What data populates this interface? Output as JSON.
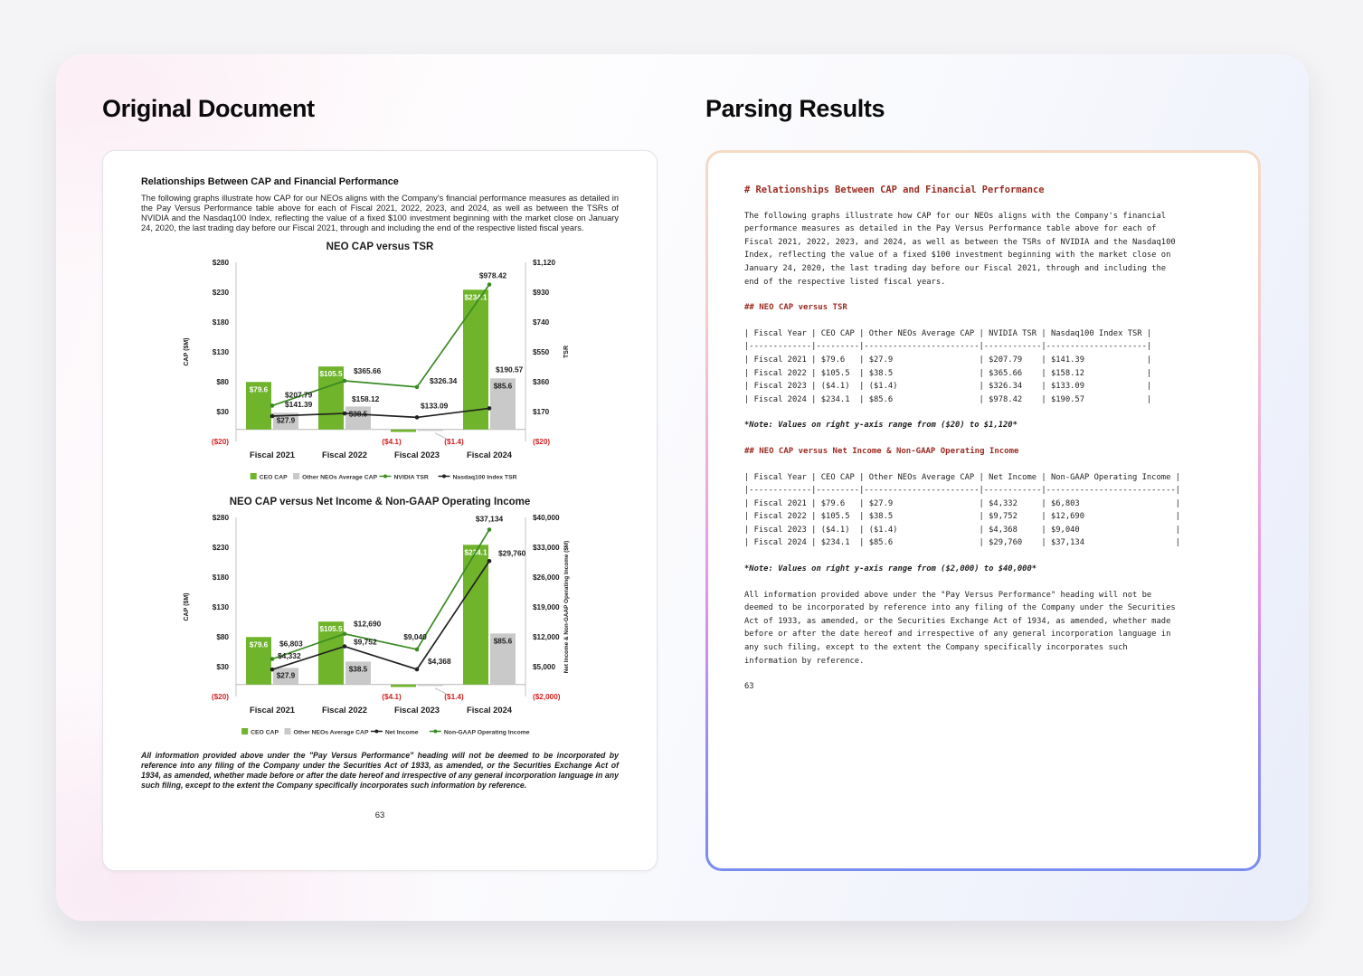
{
  "page": {
    "background": "#f4f4f6"
  },
  "colors": {
    "bar_green": "#6fb42b",
    "line_green": "#3a8a23",
    "bar_gray": "#c9c9c9",
    "line_black": "#222222",
    "negative_red": "#d42222",
    "md_heading_red": "#9a2c21",
    "parse_border_top": "#f3dbc7",
    "parse_border_mid": "#e392ea",
    "parse_border_bottom": "#7a8cee"
  },
  "left_panel": {
    "title": "Original Document"
  },
  "right_panel": {
    "title": "Parsing Results",
    "blocks": [
      {
        "type": "h1",
        "text": "# Relationships Between CAP and Financial Performance"
      },
      {
        "type": "p",
        "text": "The following graphs illustrate how CAP for our NEOs aligns with the Company's financial\nperformance measures as detailed in the Pay Versus Performance table above for each of\nFiscal 2021, 2022, 2023, and 2024, as well as between the TSRs of NVIDIA and the Nasdaq100\nIndex, reflecting the value of a fixed $100 investment beginning with the market close on\nJanuary 24, 2020, the last trading day before our Fiscal 2021, through and including the\nend of the respective listed fiscal years."
      },
      {
        "type": "h2",
        "text": "## NEO CAP versus TSR"
      },
      {
        "type": "table",
        "text": "| Fiscal Year | CEO CAP | Other NEOs Average CAP | NVIDIA TSR | Nasdaq100 Index TSR |\n|-------------|---------|------------------------|------------|---------------------|\n| Fiscal 2021 | $79.6   | $27.9                  | $207.79    | $141.39             |\n| Fiscal 2022 | $105.5  | $38.5                  | $365.66    | $158.12             |\n| Fiscal 2023 | ($4.1)  | ($1.4)                 | $326.34    | $133.09             |\n| Fiscal 2024 | $234.1  | $85.6                  | $978.42    | $190.57             |"
      },
      {
        "type": "note",
        "text": "*Note: Values on right y-axis range from ($20) to $1,120*"
      },
      {
        "type": "h2",
        "text": "## NEO CAP versus Net Income & Non-GAAP Operating Income"
      },
      {
        "type": "table",
        "text": "| Fiscal Year | CEO CAP | Other NEOs Average CAP | Net Income | Non-GAAP Operating Income |\n|-------------|---------|------------------------|------------|---------------------------|\n| Fiscal 2021 | $79.6   | $27.9                  | $4,332     | $6,803                    |\n| Fiscal 2022 | $105.5  | $38.5                  | $9,752     | $12,690                   |\n| Fiscal 2023 | ($4.1)  | ($1.4)                 | $4,368     | $9,040                    |\n| Fiscal 2024 | $234.1  | $85.6                  | $29,760    | $37,134                   |"
      },
      {
        "type": "note",
        "text": "*Note: Values on right y-axis range from ($2,000) to $40,000*"
      },
      {
        "type": "p",
        "text": "All information provided above under the \"Pay Versus Performance\" heading will not be\ndeemed to be incorporated by reference into any filing of the Company under the Securities\nAct of 1933, as amended, or the Securities Exchange Act of 1934, as amended, whether made\nbefore or after the date hereof and irrespective of any general incorporation language in\nany such filing, except to the extent the Company specifically incorporates such\ninformation by reference."
      },
      {
        "type": "p",
        "text": "63"
      }
    ]
  },
  "document": {
    "heading": "Relationships Between CAP and Financial Performance",
    "intro": "The following graphs illustrate how CAP for our NEOs aligns with the Company's financial performance measures as detailed in the Pay Versus Performance table above for each of Fiscal 2021, 2022, 2023, and 2024, as well as between the TSRs of NVIDIA and the Nasdaq100 Index, reflecting the value of a fixed $100 investment beginning with the market close on January 24, 2020, the last trading day before our Fiscal 2021, through and including the end of the respective listed fiscal years.",
    "disclaimer": "All information provided above under the \"Pay Versus Performance\" heading will not be deemed to be incorporated by reference into any filing of the Company under the Securities Act of 1933, as amended, or the Securities Exchange Act of 1934, as amended, whether made before or after the date hereof and irrespective of any general incorporation language in any such filing, except to the extent the Company specifically incorporates such information by reference.",
    "page_number": "63"
  },
  "chart_data": [
    {
      "type": "bar+line",
      "title": "NEO CAP versus TSR",
      "categories": [
        "Fiscal 2021",
        "Fiscal 2022",
        "Fiscal 2023",
        "Fiscal 2024"
      ],
      "left_axis": {
        "label": "CAP ($M)",
        "range": [
          -20,
          280
        ],
        "tick_values": [
          280,
          230,
          180,
          130,
          80,
          30,
          -20
        ],
        "ticks": [
          "$280",
          "$230",
          "$180",
          "$130",
          "$80",
          "$30",
          "($20)"
        ]
      },
      "right_axis": {
        "label": "TSR",
        "range": [
          -20,
          1120
        ],
        "tick_values": [
          1120,
          930,
          740,
          550,
          360,
          170,
          -20
        ],
        "ticks": [
          "$1,120",
          "$930",
          "$740",
          "$550",
          "$360",
          "$170",
          "($20)"
        ]
      },
      "bar_series": [
        {
          "name": "CEO CAP",
          "color": "#6fb42b",
          "values": [
            79.6,
            105.5,
            -4.1,
            234.1
          ],
          "labels": [
            "$79.6",
            "$105.5",
            "($4.1)",
            "$234.1"
          ]
        },
        {
          "name": "Other NEOs Average CAP",
          "color": "#c9c9c9",
          "values": [
            27.9,
            38.5,
            -1.4,
            85.6
          ],
          "labels": [
            "$27.9",
            "$38.5",
            "($1.4)",
            "$85.6"
          ]
        }
      ],
      "line_series": [
        {
          "name": "NVIDIA TSR",
          "color": "#3a8a23",
          "values": [
            207.79,
            365.66,
            326.34,
            978.42
          ],
          "labels": [
            "$207.79",
            "$365.66",
            "$326.34",
            "$978.42"
          ]
        },
        {
          "name": "Nasdaq100 Index TSR",
          "color": "#222222",
          "values": [
            141.39,
            158.12,
            133.09,
            190.57
          ],
          "labels": [
            "$141.39",
            "$158.12",
            "$133.09",
            "$190.57"
          ]
        }
      ],
      "legend_position": "bottom",
      "grid": false
    },
    {
      "type": "bar+line",
      "title": "NEO CAP versus Net Income & Non-GAAP Operating Income",
      "categories": [
        "Fiscal 2021",
        "Fiscal 2022",
        "Fiscal 2023",
        "Fiscal 2024"
      ],
      "left_axis": {
        "label": "CAP ($M)",
        "range": [
          -20,
          280
        ],
        "tick_values": [
          280,
          230,
          180,
          130,
          80,
          30,
          -20
        ],
        "ticks": [
          "$280",
          "$230",
          "$180",
          "$130",
          "$80",
          "$30",
          "($20)"
        ]
      },
      "right_axis": {
        "label": "Net Income & Non-GAAP Operating Income ($M)",
        "range": [
          -2000,
          40000
        ],
        "tick_values": [
          40000,
          33000,
          26000,
          19000,
          12000,
          5000,
          -2000
        ],
        "ticks": [
          "$40,000",
          "$33,000",
          "$26,000",
          "$19,000",
          "$12,000",
          "$5,000",
          "($2,000)"
        ]
      },
      "bar_series": [
        {
          "name": "CEO CAP",
          "color": "#6fb42b",
          "values": [
            79.6,
            105.5,
            -4.1,
            234.1
          ],
          "labels": [
            "$79.6",
            "$105.5",
            "($4.1)",
            "$234.1"
          ]
        },
        {
          "name": "Other NEOs Average CAP",
          "color": "#c9c9c9",
          "values": [
            27.9,
            38.5,
            -1.4,
            85.6
          ],
          "labels": [
            "$27.9",
            "$38.5",
            "($1.4)",
            "$85.6"
          ]
        }
      ],
      "line_series": [
        {
          "name": "Net Income",
          "color": "#222222",
          "values": [
            4332,
            9752,
            4368,
            29760
          ],
          "labels": [
            "$4,332",
            "$9,752",
            "$4,368",
            "$29,760"
          ]
        },
        {
          "name": "Non-GAAP Operating Income",
          "color": "#3a8a23",
          "values": [
            6803,
            12690,
            9040,
            37134
          ],
          "labels": [
            "$6,803",
            "$12,690",
            "$9,040",
            "$37,134"
          ]
        }
      ],
      "legend_position": "bottom",
      "grid": false
    }
  ]
}
